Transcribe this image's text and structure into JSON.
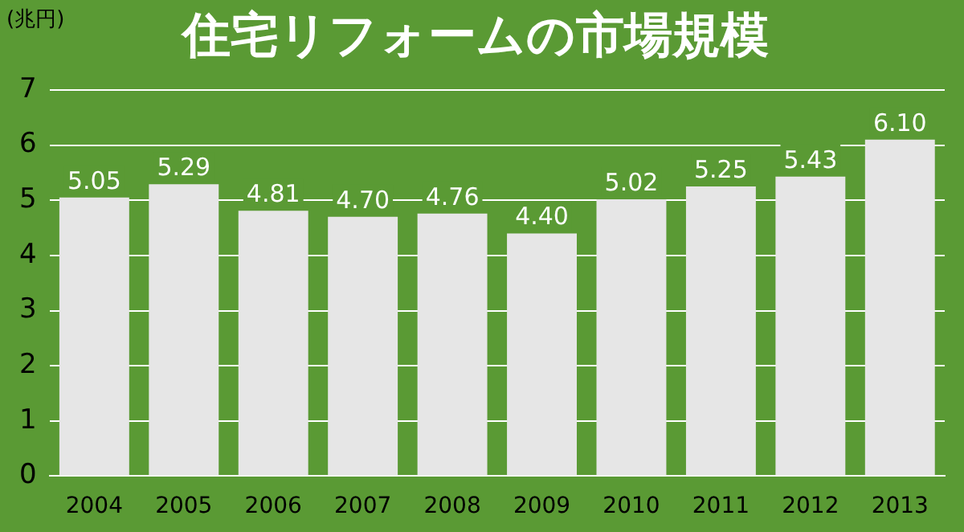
{
  "chart_data": {
    "type": "bar",
    "title": "住宅リフォームの市場規模",
    "ylabel": "(兆円)",
    "categories": [
      "2004",
      "2005",
      "2006",
      "2007",
      "2008",
      "2009",
      "2010",
      "2011",
      "2012",
      "2013"
    ],
    "values": [
      5.05,
      5.29,
      4.81,
      4.7,
      4.76,
      4.4,
      5.02,
      5.25,
      5.43,
      6.1
    ],
    "value_labels": [
      "5.05",
      "5.29",
      "4.81",
      "4.70",
      "4.76",
      "4.40",
      "5.02",
      "5.25",
      "5.43",
      "6.10"
    ],
    "color": "#e6e6e6",
    "ylim": [
      0,
      7
    ],
    "yticks": [
      0,
      1,
      2,
      3,
      4,
      5,
      6,
      7
    ],
    "grid": "y",
    "legend": false
  }
}
